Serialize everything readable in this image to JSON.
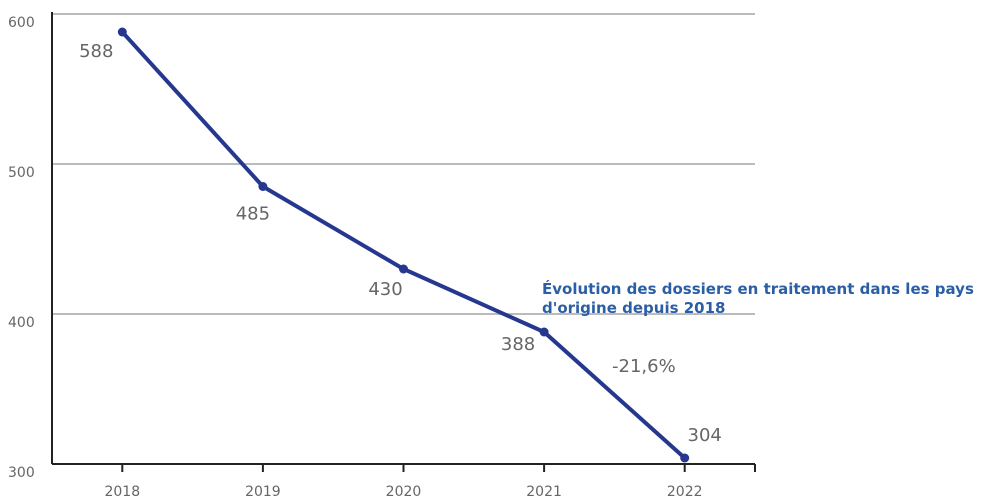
{
  "chart_data": {
    "type": "line",
    "annotation": "Évolution des dossiers en traitement dans les pays d'origine depuis 2018",
    "change_label": "-21,6%",
    "categories": [
      "2018",
      "2019",
      "2020",
      "2021",
      "2022"
    ],
    "series": [
      {
        "name": "dossiers",
        "color": "#25378f",
        "values": [
          588,
          485,
          430,
          388,
          304
        ]
      }
    ],
    "ylim": [
      300,
      600
    ],
    "yticks": [
      300,
      400,
      500,
      600
    ],
    "grid": true
  }
}
